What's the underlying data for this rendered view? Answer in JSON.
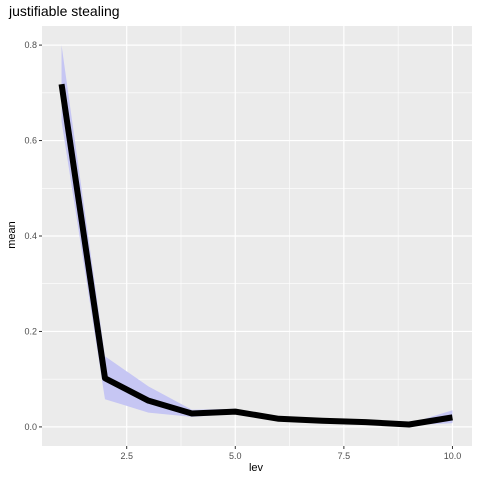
{
  "chart_data": {
    "type": "line",
    "title": "justifiable stealing",
    "xlabel": "lev",
    "ylabel": "mean",
    "xlim": [
      0.55,
      10.45
    ],
    "ylim": [
      -0.04,
      0.84
    ],
    "x_ticks": [
      2.5,
      5.0,
      7.5,
      10.0
    ],
    "x_tick_labels": [
      "2.5",
      "5.0",
      "7.5",
      "10.0"
    ],
    "y_ticks": [
      0.0,
      0.2,
      0.4,
      0.6,
      0.8
    ],
    "y_tick_labels": [
      "0.0",
      "0.2",
      "0.4",
      "0.6",
      "0.8"
    ],
    "grid": true,
    "series": [
      {
        "x": [
          1,
          2,
          3,
          4,
          5,
          6,
          7,
          8,
          9,
          10
        ],
        "y": [
          0.718,
          0.102,
          0.055,
          0.028,
          0.032,
          0.017,
          0.013,
          0.01,
          0.005,
          0.02
        ],
        "ymin": [
          0.64,
          0.058,
          0.03,
          0.021,
          0.027,
          0.014,
          0.01,
          0.008,
          0.003,
          0.008
        ],
        "ymax": [
          0.8,
          0.148,
          0.085,
          0.036,
          0.038,
          0.02,
          0.016,
          0.012,
          0.007,
          0.035
        ]
      }
    ],
    "colors": {
      "panel": "#ebebeb",
      "grid_major": "#ffffff",
      "ribbon": "#c6c6f3",
      "line": "#000000"
    }
  }
}
